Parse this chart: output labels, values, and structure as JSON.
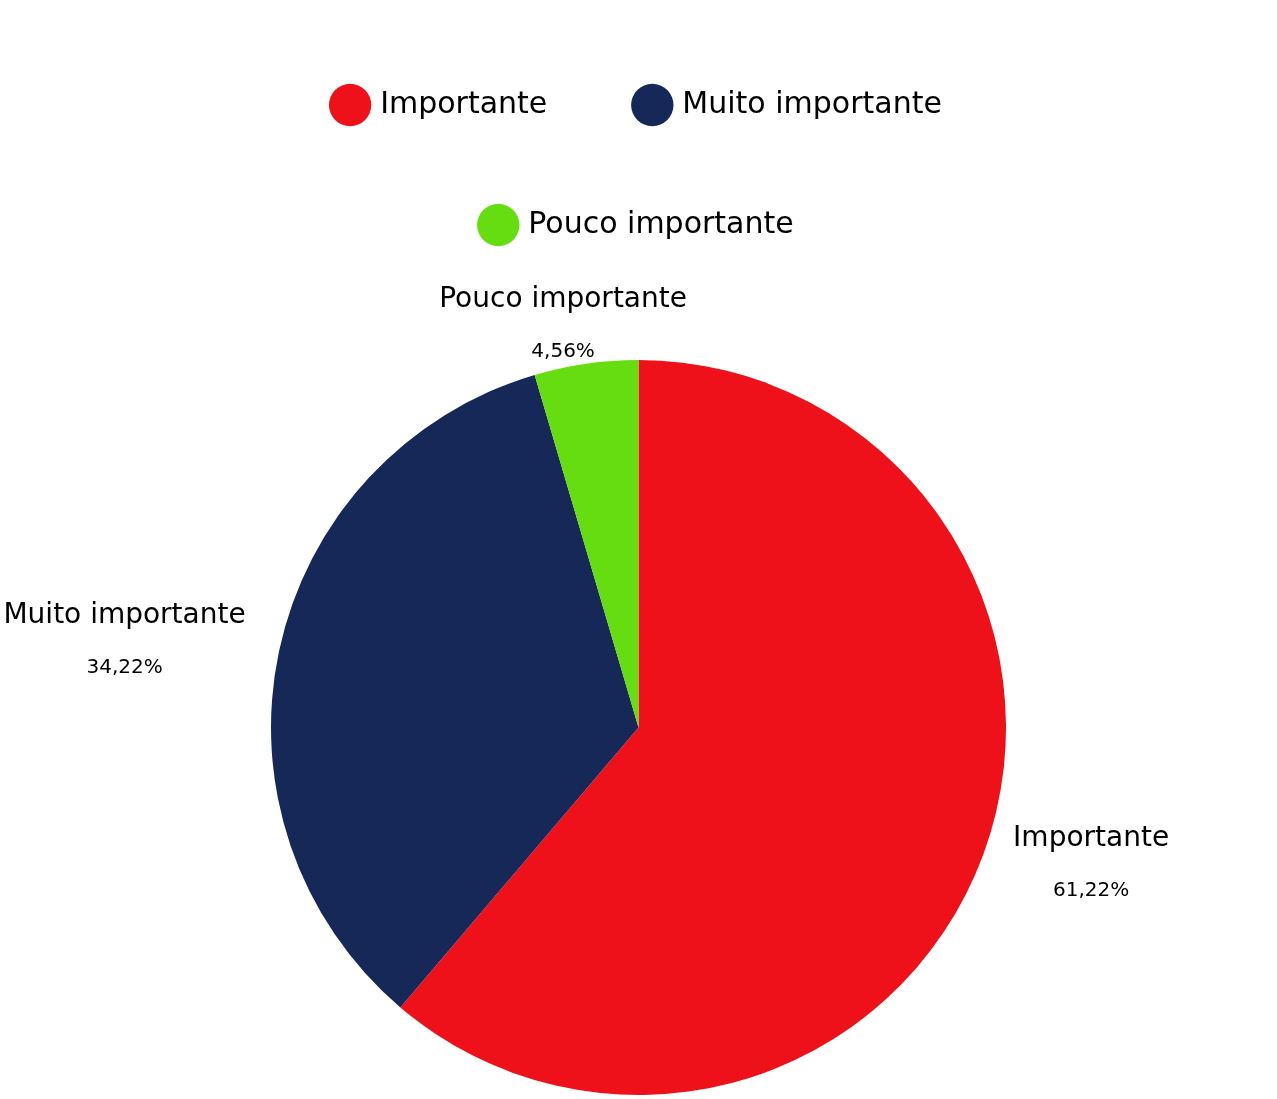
{
  "chart_data": {
    "type": "pie",
    "categories": [
      "Importante",
      "Muito importante",
      "Pouco importante"
    ],
    "values": [
      61.22,
      34.22,
      4.56
    ],
    "value_labels": [
      "61,22%",
      "34,22%",
      "4,56%"
    ],
    "colors": [
      "#ef1119",
      "#162858",
      "#66dd11"
    ],
    "legend": "top"
  }
}
